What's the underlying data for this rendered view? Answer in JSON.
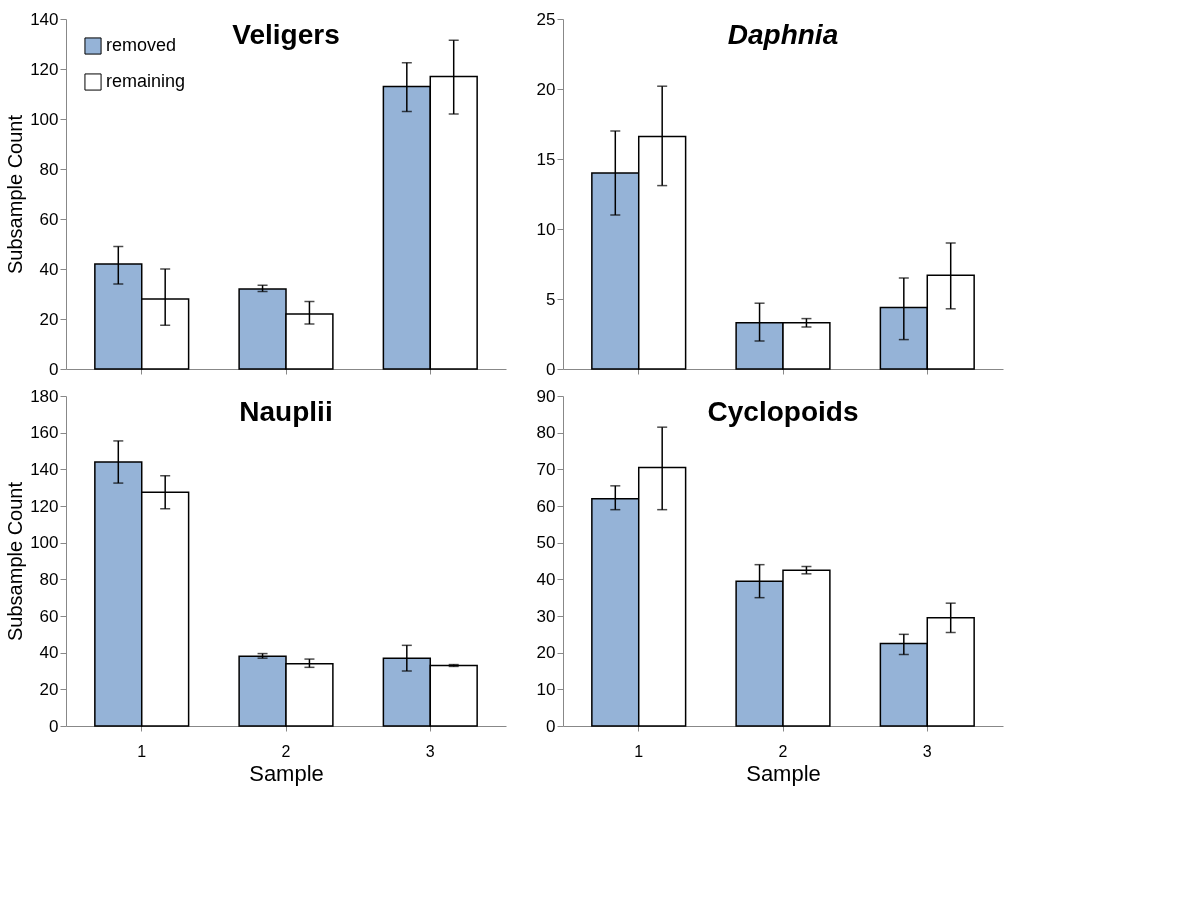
{
  "chart_data": [
    {
      "type": "bar",
      "title": "Veligers",
      "ylabel": "Subsample Count",
      "categories": [
        "1",
        "2",
        "3"
      ],
      "ylim": [
        0,
        140
      ],
      "yticks": [
        0,
        20,
        40,
        60,
        80,
        100,
        120,
        140
      ],
      "tick_labels": "y",
      "legend": "top left",
      "grid": false,
      "series": [
        {
          "name": "removed",
          "color": "#95b3d7",
          "values": [
            42,
            32,
            113
          ],
          "errors": [
            [
              34,
              49
            ],
            [
              31,
              33.5
            ],
            [
              103,
              122.5
            ]
          ]
        },
        {
          "name": "remaining",
          "color": "#ffffff",
          "values": [
            28,
            22,
            117
          ],
          "errors": [
            [
              17.5,
              40
            ],
            [
              18,
              27
            ],
            [
              102,
              131.5
            ]
          ]
        }
      ]
    },
    {
      "type": "bar",
      "title": "Daphnia",
      "categories": [
        "1",
        "2",
        "3"
      ],
      "ylim": [
        0,
        25
      ],
      "yticks": [
        0,
        5,
        10,
        15,
        20,
        25
      ],
      "tick_labels": "y",
      "grid": false,
      "series": [
        {
          "color": "#95b3d7",
          "values": [
            14,
            3.3,
            4.4
          ],
          "errors": [
            [
              11,
              17
            ],
            [
              2,
              4.7
            ],
            [
              2.1,
              6.5
            ]
          ]
        },
        {
          "color": "#ffffff",
          "values": [
            16.6,
            3.3,
            6.7
          ],
          "errors": [
            [
              13.1,
              20.2
            ],
            [
              3,
              3.6
            ],
            [
              4.3,
              9
            ]
          ]
        }
      ]
    },
    {
      "type": "bar",
      "title": "Nauplii",
      "ylabel": "Subsample Count",
      "xlabel": "Sample",
      "categories": [
        "1",
        "2",
        "3"
      ],
      "ylim": [
        0,
        180
      ],
      "yticks": [
        0,
        20,
        40,
        60,
        80,
        100,
        120,
        140,
        160,
        180
      ],
      "grid": false,
      "series": [
        {
          "color": "#95b3d7",
          "values": [
            144,
            38,
            37
          ],
          "errors": [
            [
              132.5,
              155.5
            ],
            [
              37,
              39.5
            ],
            [
              30,
              44
            ]
          ]
        },
        {
          "color": "#ffffff",
          "values": [
            127.5,
            34,
            33
          ],
          "errors": [
            [
              118.5,
              136.5
            ],
            [
              32,
              36.5
            ],
            [
              32.5,
              33.5
            ]
          ]
        }
      ]
    },
    {
      "type": "bar",
      "title": "Cyclopoids",
      "xlabel": "Sample",
      "categories": [
        "1",
        "2",
        "3"
      ],
      "ylim": [
        0,
        90
      ],
      "yticks": [
        0,
        10,
        20,
        30,
        40,
        50,
        60,
        70,
        80,
        90
      ],
      "grid": false,
      "series": [
        {
          "color": "#95b3d7",
          "values": [
            62,
            39.5,
            22.5
          ],
          "errors": [
            [
              59,
              65.5
            ],
            [
              35,
              44
            ],
            [
              19.5,
              25
            ]
          ]
        },
        {
          "color": "#ffffff",
          "values": [
            70.5,
            42.5,
            29.5
          ],
          "errors": [
            [
              59,
              81.5
            ],
            [
              41.5,
              43.5
            ],
            [
              25.5,
              33.5
            ]
          ]
        }
      ]
    }
  ]
}
